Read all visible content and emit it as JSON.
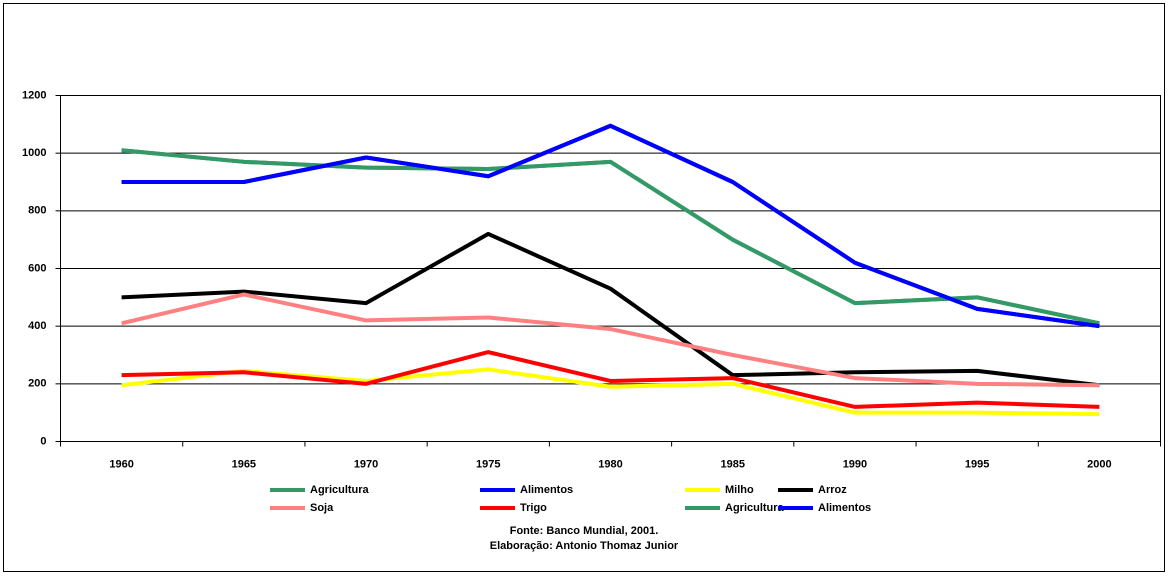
{
  "chart_data": {
    "type": "line",
    "categories": [
      "1960",
      "1965",
      "1970",
      "1975",
      "1980",
      "1985",
      "1990",
      "1995",
      "2000"
    ],
    "series": [
      {
        "name": "Agricultura",
        "color": "#339966",
        "values": [
          1010,
          970,
          950,
          945,
          970,
          700,
          480,
          500,
          410
        ]
      },
      {
        "name": "Alimentos",
        "color": "#0000ff",
        "values": [
          900,
          900,
          985,
          920,
          1095,
          900,
          620,
          460,
          400
        ]
      },
      {
        "name": "Milho",
        "color": "#ffff00",
        "values": [
          195,
          245,
          210,
          250,
          190,
          200,
          100,
          100,
          95
        ]
      },
      {
        "name": "Arroz",
        "color": "#000000",
        "values": [
          500,
          520,
          480,
          720,
          530,
          230,
          240,
          245,
          195
        ]
      },
      {
        "name": "Soja",
        "color": "#ff8080",
        "values": [
          410,
          510,
          420,
          430,
          390,
          300,
          220,
          200,
          195
        ]
      },
      {
        "name": "Trigo",
        "color": "#ff0000",
        "values": [
          230,
          240,
          200,
          310,
          210,
          220,
          120,
          135,
          120
        ]
      },
      {
        "name": "Agricultura",
        "color": "#339966",
        "values": [
          1010,
          970,
          950,
          945,
          970,
          700,
          480,
          500,
          410
        ]
      },
      {
        "name": "Alimentos",
        "color": "#0000ff",
        "values": [
          900,
          900,
          985,
          920,
          1095,
          900,
          620,
          460,
          400
        ]
      }
    ],
    "ylim": [
      0,
      1200
    ],
    "yticks": [
      0,
      200,
      400,
      600,
      800,
      1000,
      1200
    ],
    "grid": true,
    "legend": "bottom",
    "annotations": [
      "Fonte: Banco Mundial, 2001.",
      "Elaboração: Antonio Thomaz Junior"
    ]
  }
}
